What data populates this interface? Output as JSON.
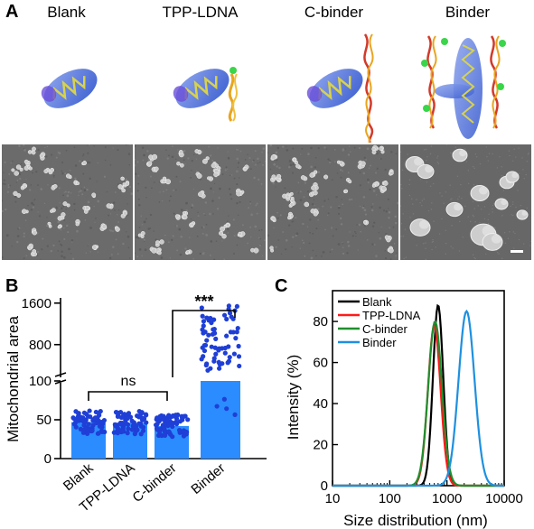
{
  "panel_a": {
    "letter": "A",
    "columns": [
      "Blank",
      "TPP-LDNA",
      "C-binder",
      "Binder"
    ]
  },
  "panel_b": {
    "letter": "B",
    "significance_top": "***",
    "significance_bottom": "ns"
  },
  "panel_c": {
    "letter": "C"
  },
  "chart_data": [
    {
      "type": "bar",
      "title": "",
      "ylabel": "Mitochondrial area",
      "xlabel": "",
      "categories": [
        "Blank",
        "TPP-LDNA",
        "C-binder",
        "Binder"
      ],
      "values": [
        47,
        46,
        42,
        640
      ],
      "y_axis_broken": true,
      "y_ticks_lower": [
        0,
        50,
        100
      ],
      "y_ticks_upper": [
        800,
        1600
      ],
      "ylim_lower": [
        0,
        100
      ],
      "ylim_upper": [
        100,
        1700
      ],
      "annotations": [
        {
          "between": [
            "Blank",
            "C-binder"
          ],
          "text": "ns"
        },
        {
          "between": [
            "C-binder",
            "Binder"
          ],
          "text": "***"
        }
      ],
      "bar_color": "#2a8cff",
      "point_color": "#1f3fd6"
    },
    {
      "type": "line",
      "title": "",
      "xlabel": "Size distribution (nm)",
      "ylabel": "Intensity (%)",
      "x_scale": "log",
      "xlim": [
        10,
        10000
      ],
      "ylim": [
        0,
        95
      ],
      "x_ticks": [
        "10",
        "100",
        "1000",
        "10000"
      ],
      "y_ticks": [
        0,
        20,
        40,
        60,
        80
      ],
      "legend_position": "top-left",
      "series": [
        {
          "name": "Blank",
          "color": "#000000",
          "peak_x": 700,
          "peak_y": 88
        },
        {
          "name": "TPP-LDNA",
          "color": "#ff1a1a",
          "peak_x": 600,
          "peak_y": 78
        },
        {
          "name": "C-binder",
          "color": "#1f8f2e",
          "peak_x": 620,
          "peak_y": 80
        },
        {
          "name": "Binder",
          "color": "#1e90e0",
          "peak_x": 2200,
          "peak_y": 85
        }
      ]
    }
  ]
}
